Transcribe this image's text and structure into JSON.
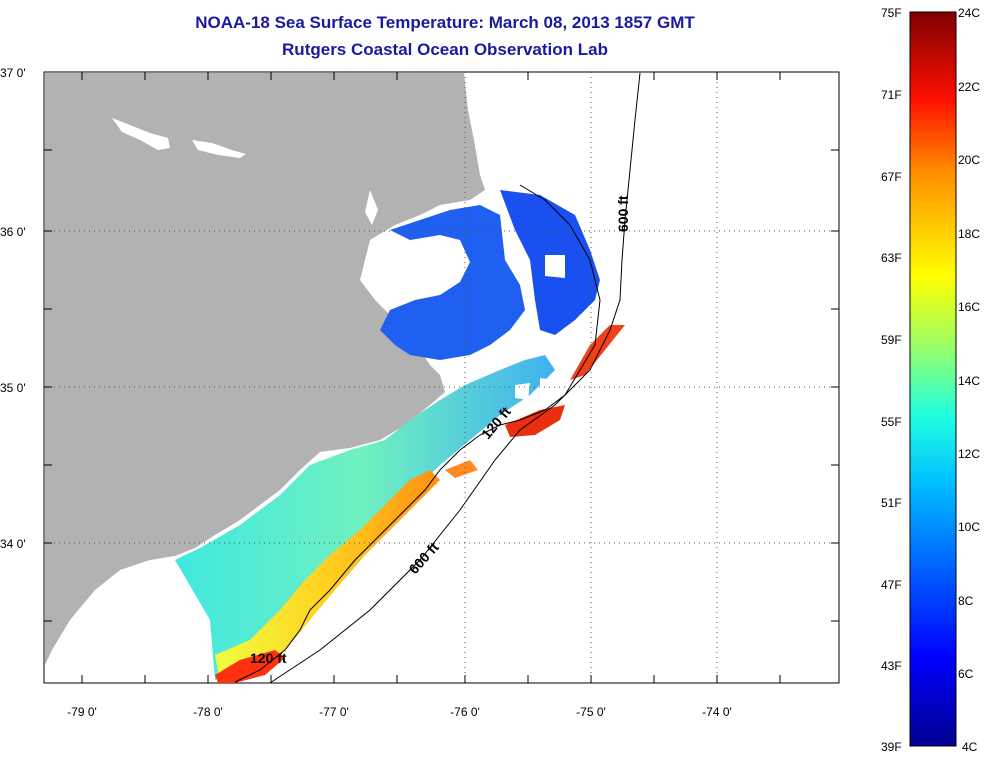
{
  "title": "NOAA-18 Sea Surface Temperature:  March 08, 2013 1857 GMT",
  "subtitle": "Rutgers Coastal Ocean Observation Lab",
  "lat_labels": [
    "37 0'",
    "36 0'",
    "35 0'",
    "34 0'"
  ],
  "lon_labels": [
    "-79 0'",
    "-78 0'",
    "-77 0'",
    "-76 0'",
    "-75 0'",
    "-74 0'"
  ],
  "contours": {
    "shallow": "120 ft",
    "deep": "600 ft"
  },
  "colorbar": {
    "fahrenheit": [
      "75F",
      "71F",
      "67F",
      "63F",
      "59F",
      "55F",
      "51F",
      "47F",
      "43F",
      "39F"
    ],
    "celsius": [
      "24C",
      "22C",
      "20C",
      "18C",
      "16C",
      "14C",
      "12C",
      "10C",
      "8C",
      "6C",
      "4C"
    ],
    "colors": [
      "#00008f",
      "#0000ff",
      "#0080ff",
      "#00ffff",
      "#80ff80",
      "#ffff00",
      "#ff8000",
      "#ff0000",
      "#800000"
    ]
  },
  "land_color": "#b2b2b2"
}
